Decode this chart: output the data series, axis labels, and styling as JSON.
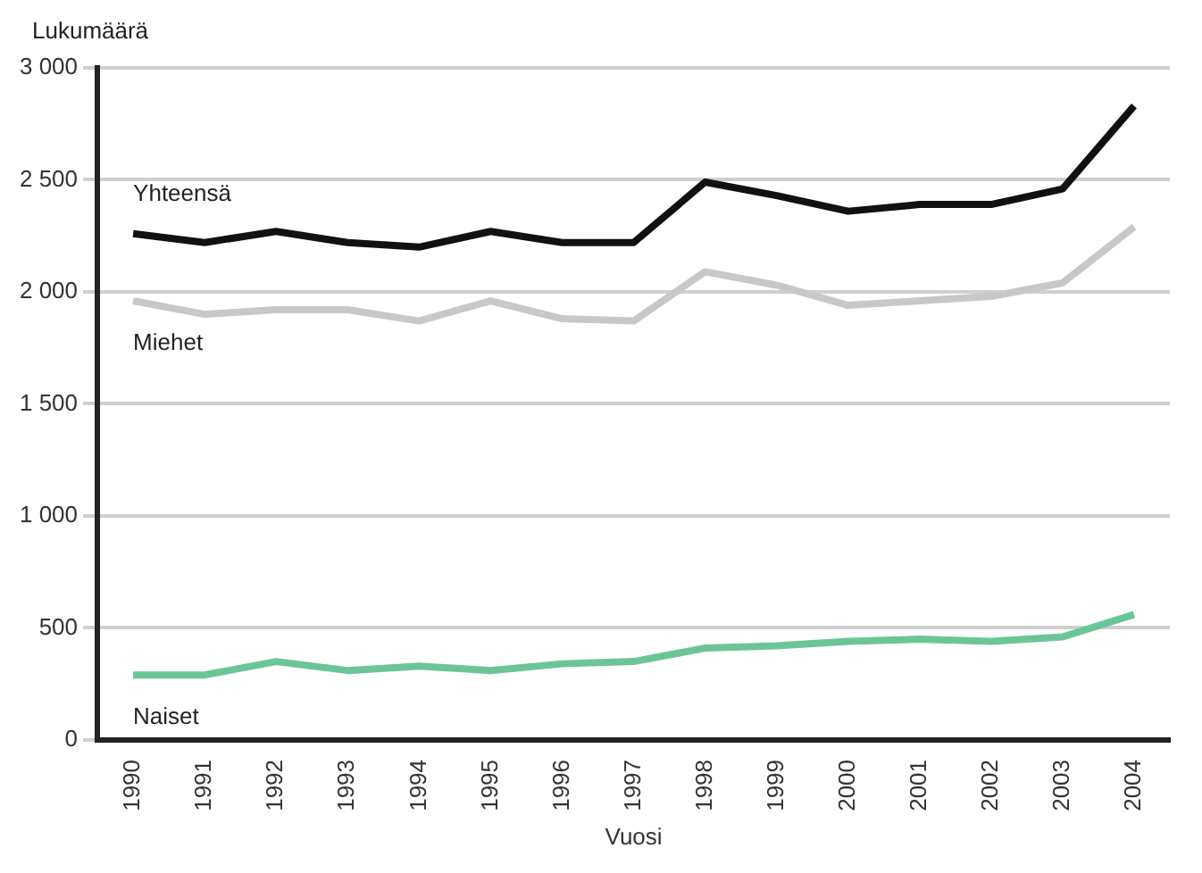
{
  "chart_data": {
    "type": "line",
    "ylabel": "Lukumäärä",
    "xlabel": "Vuosi",
    "categories": [
      "1990",
      "1991",
      "1992",
      "1993",
      "1994",
      "1995",
      "1996",
      "1997",
      "1998",
      "1999",
      "2000",
      "2001",
      "2002",
      "2003",
      "2004"
    ],
    "series": [
      {
        "name": "Yhteensä",
        "color": "#111111",
        "values": [
          2260,
          2220,
          2270,
          2220,
          2200,
          2270,
          2220,
          2220,
          2490,
          2430,
          2360,
          2390,
          2390,
          2460,
          2830
        ]
      },
      {
        "name": "Miehet",
        "color": "#c8c8c8",
        "values": [
          1960,
          1900,
          1920,
          1920,
          1870,
          1960,
          1880,
          1870,
          2090,
          2030,
          1940,
          1960,
          1980,
          2040,
          2290
        ]
      },
      {
        "name": "Naiset",
        "color": "#6cc597",
        "values": [
          290,
          290,
          350,
          310,
          330,
          310,
          340,
          350,
          410,
          420,
          440,
          450,
          440,
          460,
          560
        ]
      }
    ],
    "ylim": [
      0,
      3000
    ],
    "yticks": [
      0,
      500,
      {
        "value": 1000,
        "label": "1 000"
      },
      {
        "value": 1500,
        "label": "1 500"
      },
      {
        "value": 2000,
        "label": "2 000"
      },
      {
        "value": 2500,
        "label": "2 500"
      },
      {
        "value": 3000,
        "label": "3 000"
      }
    ],
    "grid": "y",
    "legend": false,
    "marker": "none",
    "line_style": "solid"
  }
}
